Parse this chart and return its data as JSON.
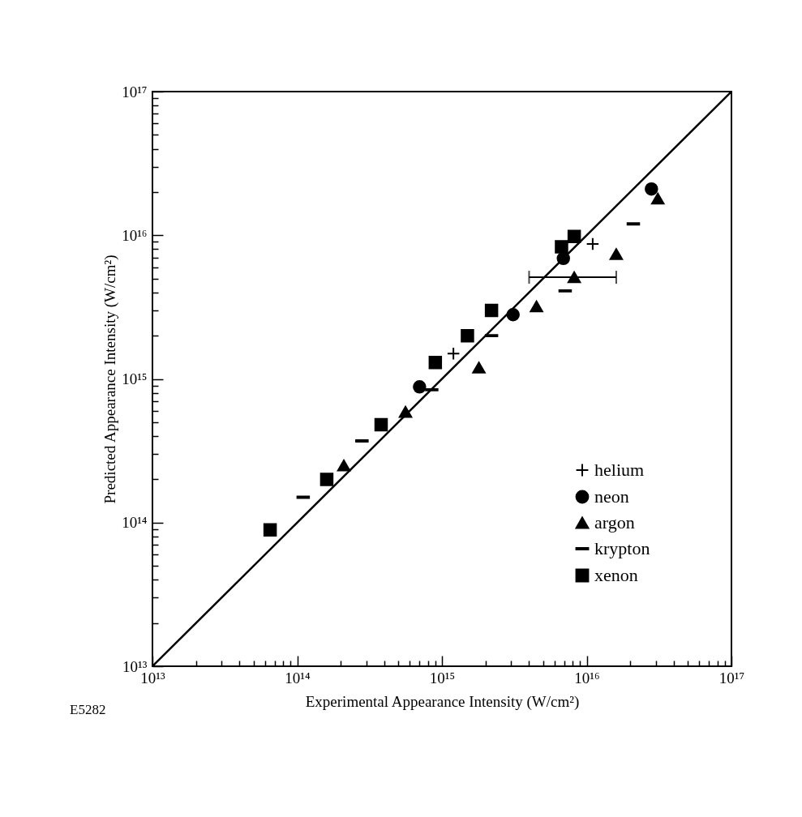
{
  "chart_data": {
    "type": "scatter",
    "xlabel": "Experimental Appearance Intensity (W/cm²)",
    "ylabel": "Predicted Appearance Intensity (W/cm²)",
    "log": "xy",
    "xlim": [
      10000000000000.0,
      1e+17
    ],
    "ylim": [
      10000000000000.0,
      1e+17
    ],
    "xticks": [
      {
        "value": 10000000000000.0,
        "label": "10¹³"
      },
      {
        "value": 20000000000000.0,
        "label": null
      },
      {
        "value": 30000000000000.0,
        "label": null
      },
      {
        "value": 40000000000000.0,
        "label": null
      },
      {
        "value": 50000000000000.0,
        "label": null
      },
      {
        "value": 60000000000000.0,
        "label": null
      },
      {
        "value": 70000000000000.0,
        "label": null
      },
      {
        "value": 80000000000000.0,
        "label": null
      },
      {
        "value": 90000000000000.0,
        "label": null
      },
      {
        "value": 100000000000000.0,
        "label": "10¹⁴"
      },
      {
        "value": 200000000000000.0,
        "label": null
      },
      {
        "value": 300000000000000.0,
        "label": null
      },
      {
        "value": 400000000000000.0,
        "label": null
      },
      {
        "value": 500000000000000.0,
        "label": null
      },
      {
        "value": 600000000000000.0,
        "label": null
      },
      {
        "value": 700000000000000.0,
        "label": null
      },
      {
        "value": 800000000000000.0,
        "label": null
      },
      {
        "value": 900000000000000.0,
        "label": null
      },
      {
        "value": 1000000000000000.0,
        "label": "10¹⁵"
      },
      {
        "value": 2000000000000000.0,
        "label": null
      },
      {
        "value": 3000000000000000.0,
        "label": null
      },
      {
        "value": 4000000000000000.0,
        "label": null
      },
      {
        "value": 5000000000000000.0,
        "label": null
      },
      {
        "value": 6000000000000000.0,
        "label": null
      },
      {
        "value": 7000000000000000.0,
        "label": null
      },
      {
        "value": 8000000000000000.0,
        "label": null
      },
      {
        "value": 9000000000000000.0,
        "label": null
      },
      {
        "value": 1e+16,
        "label": "10¹⁶"
      },
      {
        "value": 2e+16,
        "label": null
      },
      {
        "value": 3e+16,
        "label": null
      },
      {
        "value": 4e+16,
        "label": null
      },
      {
        "value": 5e+16,
        "label": null
      },
      {
        "value": 6e+16,
        "label": null
      },
      {
        "value": 7e+16,
        "label": null
      },
      {
        "value": 8e+16,
        "label": null
      },
      {
        "value": 9e+16,
        "label": null
      },
      {
        "value": 1e+17,
        "label": "10¹⁷"
      }
    ],
    "yticks": [
      {
        "value": 10000000000000.0,
        "label": "10¹³"
      },
      {
        "value": 20000000000000.0,
        "label": null
      },
      {
        "value": 30000000000000.0,
        "label": null
      },
      {
        "value": 40000000000000.0,
        "label": null
      },
      {
        "value": 50000000000000.0,
        "label": null
      },
      {
        "value": 60000000000000.0,
        "label": null
      },
      {
        "value": 70000000000000.0,
        "label": null
      },
      {
        "value": 80000000000000.0,
        "label": null
      },
      {
        "value": 90000000000000.0,
        "label": null
      },
      {
        "value": 100000000000000.0,
        "label": "10¹⁴"
      },
      {
        "value": 200000000000000.0,
        "label": null
      },
      {
        "value": 300000000000000.0,
        "label": null
      },
      {
        "value": 400000000000000.0,
        "label": null
      },
      {
        "value": 500000000000000.0,
        "label": null
      },
      {
        "value": 600000000000000.0,
        "label": null
      },
      {
        "value": 700000000000000.0,
        "label": null
      },
      {
        "value": 800000000000000.0,
        "label": null
      },
      {
        "value": 900000000000000.0,
        "label": null
      },
      {
        "value": 1000000000000000.0,
        "label": "10¹⁵"
      },
      {
        "value": 2000000000000000.0,
        "label": null
      },
      {
        "value": 3000000000000000.0,
        "label": null
      },
      {
        "value": 4000000000000000.0,
        "label": null
      },
      {
        "value": 5000000000000000.0,
        "label": null
      },
      {
        "value": 6000000000000000.0,
        "label": null
      },
      {
        "value": 7000000000000000.0,
        "label": null
      },
      {
        "value": 8000000000000000.0,
        "label": null
      },
      {
        "value": 9000000000000000.0,
        "label": null
      },
      {
        "value": 1e+16,
        "label": "10¹⁶"
      },
      {
        "value": 2e+16,
        "label": null
      },
      {
        "value": 3e+16,
        "label": null
      },
      {
        "value": 4e+16,
        "label": null
      },
      {
        "value": 5e+16,
        "label": null
      },
      {
        "value": 6e+16,
        "label": null
      },
      {
        "value": 7e+16,
        "label": null
      },
      {
        "value": 8e+16,
        "label": null
      },
      {
        "value": 9e+16,
        "label": null
      },
      {
        "value": 1e+17,
        "label": "10¹⁷"
      }
    ],
    "legend": "bottom right",
    "grid": false,
    "annotations": [
      "E5282"
    ],
    "series": [
      {
        "type": "line",
        "color": "#000000",
        "x": [
          10000000000000.0,
          1e+17
        ],
        "values": [
          10000000000000.0,
          1e+17
        ]
      },
      {
        "name": "helium",
        "color": "#000000",
        "marker": "cross",
        "x": [
          1200000000000000.0,
          1.1e+16
        ],
        "values": [
          1500000000000000.0,
          8700000000000000.0
        ]
      },
      {
        "name": "neon",
        "color": "#000000",
        "marker": "circle",
        "x": [
          700000000000000.0,
          3100000000000000.0,
          6900000000000000.0,
          2.8e+16
        ],
        "values": [
          880000000000000.0,
          2800000000000000.0,
          6900000000000000.0,
          2.1e+16
        ]
      },
      {
        "name": "argon",
        "color": "#000000",
        "marker": "triangle",
        "x": [
          210000000000000.0,
          560000000000000.0,
          1800000000000000.0,
          4500000000000000.0,
          8200000000000000.0,
          1.6e+16,
          3.1e+16
        ],
        "values": [
          250000000000000.0,
          590000000000000.0,
          1200000000000000.0,
          3200000000000000.0,
          5100000000000000.0,
          7400000000000000.0,
          1.8e+16
        ],
        "xerrors": [
          null,
          null,
          null,
          null,
          [
            4000000000000000.0,
            1.6e+16
          ],
          null,
          null
        ]
      },
      {
        "name": "krypton",
        "color": "#000000",
        "x": [
          110000000000000.0,
          280000000000000.0,
          850000000000000.0,
          2200000000000000.0,
          7100000000000000.0,
          2.1e+16
        ],
        "values": [
          150000000000000.0,
          370000000000000.0,
          840000000000000.0,
          2000000000000000.0,
          4100000000000000.0,
          1.2e+16
        ]
      },
      {
        "name": "xenon",
        "color": "#000000",
        "marker": "square",
        "x": [
          65000000000000.0,
          160000000000000.0,
          380000000000000.0,
          900000000000000.0,
          1500000000000000.0,
          2200000000000000.0,
          6700000000000000.0,
          8200000000000000.0
        ],
        "values": [
          89000000000000.0,
          200000000000000.0,
          480000000000000.0,
          1300000000000000.0,
          2000000000000000.0,
          3000000000000000.0,
          8300000000000000.0,
          9800000000000000.0
        ]
      }
    ]
  }
}
